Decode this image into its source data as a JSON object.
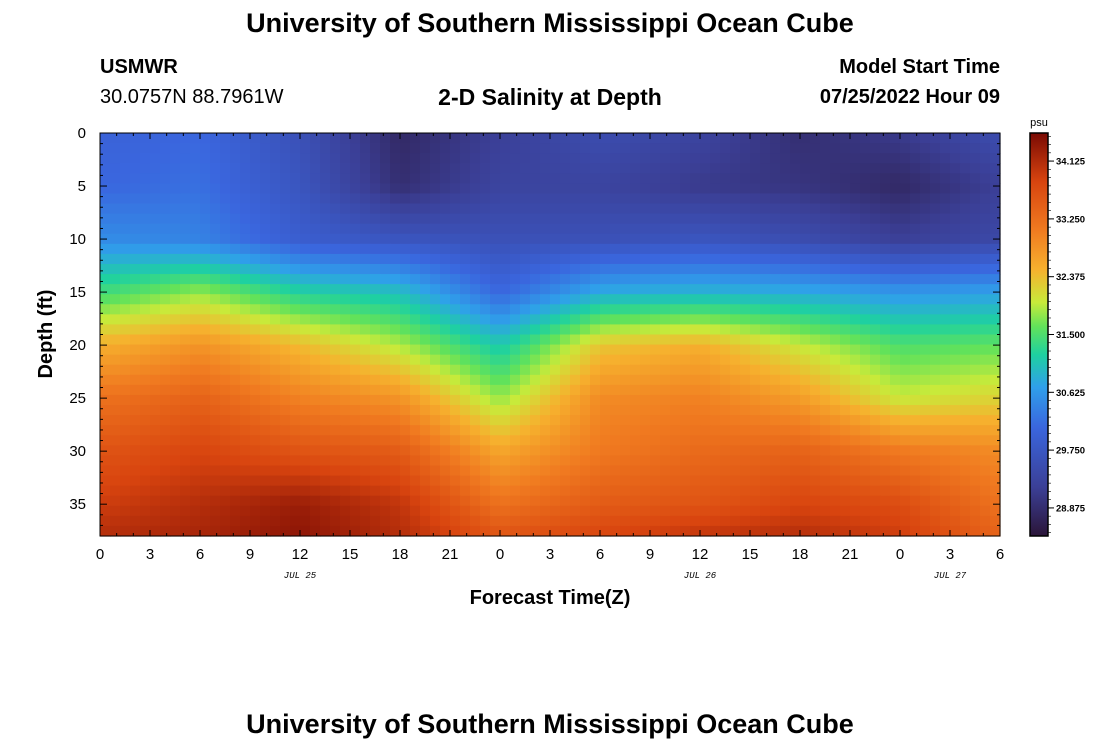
{
  "page": {
    "title_top": "University of Southern Mississippi Ocean Cube",
    "title_bottom": "University of Southern Mississippi Ocean Cube",
    "station": "USMWR",
    "coords": "30.0757N  88.7961W",
    "plot_title": "2-D Salinity at Depth",
    "model_label": "Model Start Time",
    "model_time": "07/25/2022 Hour 09"
  },
  "chart_data": {
    "type": "heatmap",
    "title": "2-D Salinity at Depth",
    "xlabel": "Forecast Time(Z)",
    "ylabel": "Depth (ft)",
    "x_tick_labels": [
      "0",
      "3",
      "6",
      "9",
      "12",
      "15",
      "18",
      "21",
      "0",
      "3",
      "6",
      "9",
      "12",
      "15",
      "18",
      "21",
      "0",
      "3",
      "6"
    ],
    "x_range_hours": [
      0,
      54
    ],
    "date_labels": [
      {
        "label": "JUL 25",
        "at_hour": 12
      },
      {
        "label": "JUL 26",
        "at_hour": 36
      },
      {
        "label": "JUL 27",
        "at_hour": 51
      }
    ],
    "y_ticks": [
      0,
      5,
      10,
      15,
      20,
      25,
      30,
      35
    ],
    "ylim": [
      0,
      38
    ],
    "y_inverted": true,
    "colorbar": {
      "unit": "psu",
      "range": [
        28.45,
        34.55
      ],
      "ticks": [
        "34.125",
        "33.250",
        "32.375",
        "31.500",
        "30.625",
        "29.750",
        "28.875"
      ]
    },
    "colormap": [
      [
        0.0,
        "#2b1538"
      ],
      [
        0.12,
        "#3b3f96"
      ],
      [
        0.27,
        "#3a66de"
      ],
      [
        0.37,
        "#2fa0ea"
      ],
      [
        0.45,
        "#1ed1a0"
      ],
      [
        0.52,
        "#62e25a"
      ],
      [
        0.58,
        "#c8ea3a"
      ],
      [
        0.66,
        "#f6b12e"
      ],
      [
        0.76,
        "#f07a20"
      ],
      [
        0.88,
        "#d8440f"
      ],
      [
        1.0,
        "#7a0a04"
      ]
    ],
    "time_hours": [
      0,
      6,
      12,
      18,
      24,
      30,
      36,
      42,
      48,
      54
    ],
    "depth_ft": [
      0,
      5,
      10,
      15,
      20,
      25,
      30,
      35,
      38
    ],
    "salinity_psu": [
      [
        30.0,
        30.1,
        29.6,
        28.8,
        29.2,
        29.5,
        29.3,
        28.9,
        29.1,
        29.5
      ],
      [
        30.1,
        30.2,
        29.7,
        28.9,
        29.3,
        29.3,
        29.1,
        29.0,
        28.8,
        29.2
      ],
      [
        30.5,
        30.4,
        29.9,
        29.7,
        29.6,
        29.6,
        29.7,
        29.5,
        29.2,
        29.4
      ],
      [
        31.4,
        31.8,
        31.2,
        31.0,
        30.1,
        30.8,
        30.9,
        30.8,
        30.6,
        30.7
      ],
      [
        32.5,
        32.8,
        32.4,
        31.9,
        31.1,
        32.3,
        32.5,
        32.0,
        31.5,
        31.6
      ],
      [
        33.2,
        33.4,
        33.0,
        32.8,
        31.8,
        32.9,
        33.0,
        32.7,
        32.0,
        32.2
      ],
      [
        33.6,
        33.8,
        33.6,
        33.5,
        32.6,
        33.1,
        33.3,
        33.4,
        33.1,
        32.9
      ],
      [
        33.9,
        34.1,
        34.3,
        34.0,
        33.2,
        33.5,
        33.6,
        33.8,
        33.7,
        33.2
      ],
      [
        34.1,
        34.2,
        34.4,
        34.1,
        33.6,
        33.8,
        34.0,
        34.1,
        33.9,
        33.4
      ]
    ]
  }
}
